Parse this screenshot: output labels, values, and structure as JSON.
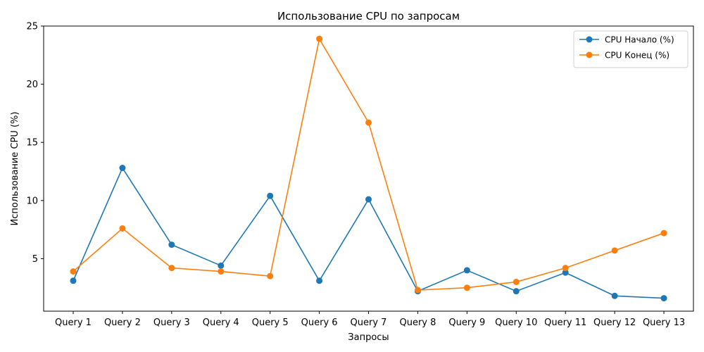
{
  "chart_data": {
    "type": "line",
    "title": "Использование CPU по запросам",
    "xlabel": "Запросы",
    "ylabel": "Использование CPU (%)",
    "categories": [
      "Query 1",
      "Query 2",
      "Query 3",
      "Query 4",
      "Query 5",
      "Query 6",
      "Query 7",
      "Query 8",
      "Query 9",
      "Query 10",
      "Query 11",
      "Query 12",
      "Query 13"
    ],
    "series": [
      {
        "name": "CPU Начало (%)",
        "color": "#1f77b4",
        "values": [
          3.1,
          12.8,
          6.2,
          4.4,
          10.4,
          3.1,
          10.1,
          2.2,
          4.0,
          2.2,
          3.8,
          1.8,
          1.6
        ]
      },
      {
        "name": "CPU Конец (%)",
        "color": "#ff7f0e",
        "values": [
          3.9,
          7.6,
          4.2,
          3.9,
          3.5,
          23.9,
          16.7,
          2.3,
          2.5,
          3.0,
          4.2,
          5.7,
          7.2
        ]
      }
    ],
    "ylim": [
      0.485,
      25.0
    ],
    "yticks": [
      5,
      10,
      15,
      20,
      25
    ],
    "grid": false,
    "legend_position": "top-right"
  }
}
